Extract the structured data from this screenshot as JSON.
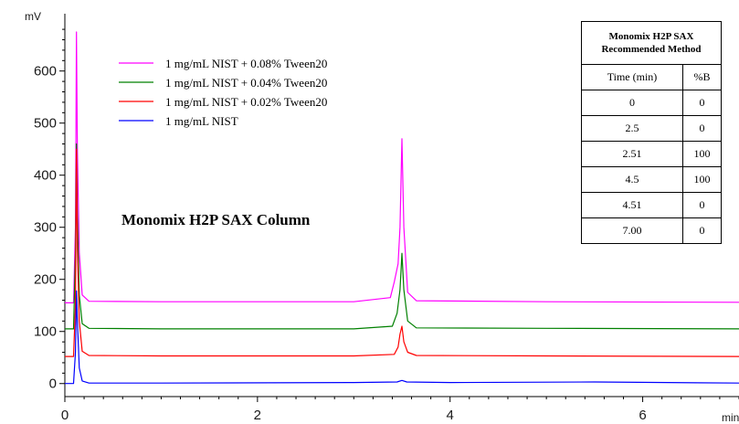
{
  "chart_data": {
    "type": "line",
    "title": "",
    "annotation": "Monomix H2P SAX Column",
    "ylabel": "mV",
    "xlabel": "min",
    "xlim": [
      0,
      7
    ],
    "ylim": [
      -25,
      710
    ],
    "x_ticks": [
      0,
      2,
      4,
      6
    ],
    "y_ticks": [
      0,
      100,
      200,
      300,
      400,
      500,
      600
    ],
    "grid": false,
    "legend_placement": "top-left",
    "series": [
      {
        "name": "1 mg/mL NIST + 0.08% Tween20",
        "color": "#ff00ff",
        "x": [
          0.0,
          0.09,
          0.11,
          0.12,
          0.13,
          0.15,
          0.18,
          0.25,
          1.0,
          3.0,
          3.38,
          3.42,
          3.46,
          3.48,
          3.5,
          3.52,
          3.56,
          3.65,
          5.0,
          7.0
        ],
        "y": [
          155,
          155,
          300,
          675,
          450,
          250,
          170,
          158,
          157,
          157,
          165,
          195,
          230,
          300,
          470,
          300,
          175,
          159,
          157,
          156
        ]
      },
      {
        "name": "1 mg/mL NIST + 0.04% Tween20",
        "color": "#008000",
        "x": [
          0.0,
          0.09,
          0.11,
          0.12,
          0.13,
          0.15,
          0.18,
          0.25,
          1.0,
          3.0,
          3.4,
          3.45,
          3.48,
          3.5,
          3.52,
          3.56,
          3.65,
          5.0,
          7.0
        ],
        "y": [
          105,
          105,
          250,
          460,
          320,
          170,
          115,
          106,
          105,
          105,
          110,
          135,
          180,
          250,
          180,
          120,
          107,
          106,
          105
        ]
      },
      {
        "name": "1 mg/mL NIST + 0.02% Tween20",
        "color": "#ff0000",
        "x": [
          0.0,
          0.09,
          0.11,
          0.12,
          0.13,
          0.15,
          0.18,
          0.25,
          1.0,
          3.0,
          3.42,
          3.46,
          3.48,
          3.5,
          3.52,
          3.56,
          3.65,
          5.0,
          7.0
        ],
        "y": [
          52,
          52,
          150,
          450,
          260,
          120,
          62,
          54,
          53,
          53,
          56,
          70,
          95,
          110,
          80,
          60,
          54,
          53,
          52
        ]
      },
      {
        "name": "1 mg/mL NIST",
        "color": "#0000ff",
        "x": [
          0.0,
          0.09,
          0.11,
          0.12,
          0.13,
          0.15,
          0.18,
          0.25,
          1.0,
          3.0,
          3.45,
          3.5,
          3.55,
          4.0,
          5.5,
          7.0
        ],
        "y": [
          0,
          0,
          60,
          178,
          120,
          30,
          5,
          1,
          1,
          2,
          3,
          6,
          3,
          2,
          3,
          1
        ]
      }
    ]
  },
  "method_table": {
    "title": "Monomix H2P SAX Recommended Method",
    "headers": [
      "Time (min)",
      "%B"
    ],
    "rows": [
      [
        "0",
        "0"
      ],
      [
        "2.5",
        "0"
      ],
      [
        "2.51",
        "100"
      ],
      [
        "4.5",
        "100"
      ],
      [
        "4.51",
        "0"
      ],
      [
        "7.00",
        "0"
      ]
    ]
  }
}
